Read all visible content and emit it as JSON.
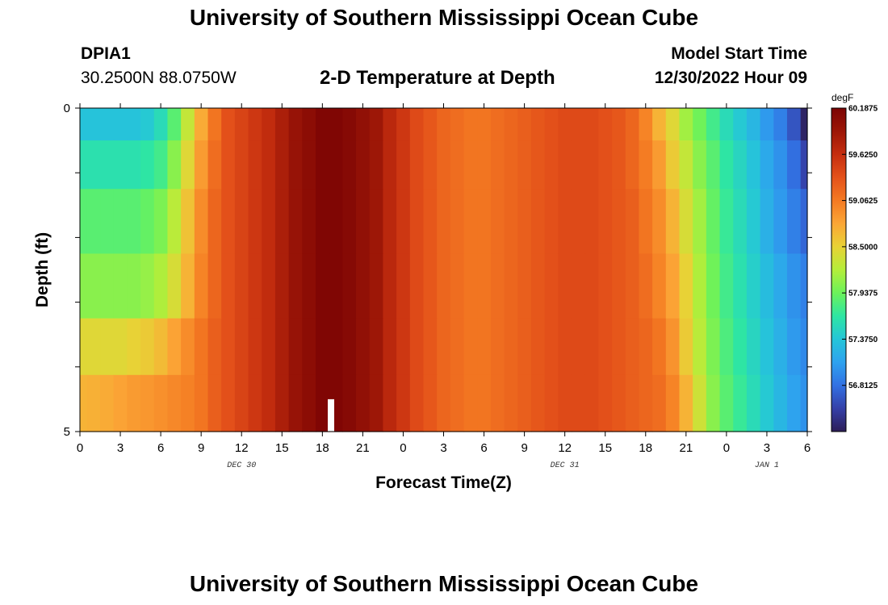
{
  "header": {
    "title": "University of Southern Mississippi Ocean Cube",
    "station_id": "DPIA1",
    "coords": "30.2500N  88.0750W",
    "plot_title": "2-D Temperature at Depth",
    "model_start_label": "Model Start Time",
    "model_start_value": "12/30/2022 Hour 09"
  },
  "footer": {
    "title": "University of Southern Mississippi Ocean Cube"
  },
  "chart_data": {
    "type": "heatmap",
    "title": "2-D Temperature at Depth",
    "xlabel": "Forecast Time(Z)",
    "ylabel": "Depth (ft)",
    "x_tick_labels": [
      "0",
      "3",
      "6",
      "9",
      "12",
      "15",
      "18",
      "21",
      "0",
      "3",
      "6",
      "9",
      "12",
      "15",
      "18",
      "21",
      "0",
      "3",
      "6"
    ],
    "x_day_labels": [
      {
        "label": "DEC 30",
        "at_tick": 4
      },
      {
        "label": "DEC 31",
        "at_tick": 12
      },
      {
        "label": "JAN 1",
        "at_tick": 17
      }
    ],
    "y_tick_labels": [
      {
        "label": "0",
        "value": 0
      },
      {
        "label": "5",
        "value": 5
      }
    ],
    "y_range": [
      0,
      5
    ],
    "x_range_hours": [
      0,
      54
    ],
    "colorbar": {
      "unit": "degF",
      "min": 56.25,
      "max": 60.1875,
      "labels": [
        "60.1875",
        "59.6250",
        "59.0625",
        "58.5000",
        "57.9375",
        "57.3750",
        "56.8125"
      ],
      "label_values": [
        60.1875,
        59.625,
        59.0625,
        58.5,
        57.9375,
        57.375,
        56.8125
      ],
      "palette": [
        "#2d1e57",
        "#3540a8",
        "#3271e3",
        "#2ea2ef",
        "#25c6d8",
        "#2ee6a3",
        "#6cf25a",
        "#b4ee3a",
        "#e8d236",
        "#fba636",
        "#f47a22",
        "#e4511a",
        "#c52e0f",
        "#9c1607",
        "#7c0404"
      ]
    },
    "depth_levels_ft": [
      0.25,
      0.75,
      1.75,
      2.75,
      3.75,
      4.5
    ],
    "time_hours": [
      0,
      1,
      2,
      3,
      4,
      5,
      6,
      7,
      8,
      9,
      10,
      11,
      12,
      13,
      14,
      15,
      16,
      17,
      18,
      19,
      20,
      21,
      22,
      23,
      24,
      25,
      26,
      27,
      28,
      29,
      30,
      31,
      32,
      33,
      34,
      35,
      36,
      37,
      38,
      39,
      40,
      41,
      42,
      43,
      44,
      45,
      46,
      47,
      48,
      49,
      50,
      51,
      52,
      53,
      54
    ],
    "time_series_degF": [
      [
        57.35,
        57.35,
        57.35,
        57.35,
        57.35,
        57.4,
        57.55,
        57.85,
        58.3,
        58.75,
        59.1,
        59.35,
        59.45,
        59.55,
        59.65,
        59.8,
        59.95,
        60.05,
        60.15,
        60.15,
        60.1,
        60.0,
        59.9,
        59.7,
        59.55,
        59.4,
        59.3,
        59.2,
        59.15,
        59.1,
        59.1,
        59.15,
        59.2,
        59.25,
        59.3,
        59.35,
        59.4,
        59.4,
        59.4,
        59.35,
        59.3,
        59.2,
        59.0,
        58.7,
        58.45,
        58.15,
        57.95,
        57.75,
        57.55,
        57.4,
        57.25,
        57.05,
        56.9,
        56.65,
        56.3
      ],
      [
        57.6,
        57.6,
        57.6,
        57.6,
        57.6,
        57.65,
        57.75,
        58.05,
        58.45,
        58.85,
        59.15,
        59.35,
        59.45,
        59.55,
        59.65,
        59.8,
        59.95,
        60.05,
        60.15,
        60.15,
        60.1,
        60.0,
        59.9,
        59.7,
        59.55,
        59.4,
        59.3,
        59.2,
        59.15,
        59.1,
        59.1,
        59.15,
        59.2,
        59.25,
        59.3,
        59.35,
        59.4,
        59.4,
        59.4,
        59.35,
        59.3,
        59.2,
        59.05,
        58.85,
        58.55,
        58.3,
        58.05,
        57.85,
        57.65,
        57.5,
        57.35,
        57.15,
        57.0,
        56.8,
        56.55
      ],
      [
        57.85,
        57.85,
        57.85,
        57.85,
        57.85,
        57.9,
        58.0,
        58.25,
        58.6,
        58.95,
        59.2,
        59.35,
        59.45,
        59.55,
        59.65,
        59.8,
        59.95,
        60.05,
        60.15,
        60.15,
        60.1,
        60.0,
        59.9,
        59.7,
        59.55,
        59.4,
        59.3,
        59.2,
        59.15,
        59.1,
        59.1,
        59.15,
        59.2,
        59.25,
        59.3,
        59.35,
        59.4,
        59.4,
        59.4,
        59.35,
        59.3,
        59.25,
        59.1,
        58.95,
        58.7,
        58.4,
        58.15,
        57.9,
        57.7,
        57.55,
        57.4,
        57.2,
        57.05,
        56.9,
        56.75
      ],
      [
        58.05,
        58.05,
        58.05,
        58.05,
        58.05,
        58.1,
        58.2,
        58.4,
        58.7,
        59.0,
        59.2,
        59.35,
        59.45,
        59.55,
        59.65,
        59.8,
        59.95,
        60.05,
        60.15,
        60.15,
        60.1,
        60.0,
        59.9,
        59.7,
        59.55,
        59.4,
        59.3,
        59.2,
        59.15,
        59.1,
        59.1,
        59.15,
        59.2,
        59.25,
        59.3,
        59.35,
        59.4,
        59.4,
        59.4,
        59.35,
        59.3,
        59.25,
        59.15,
        59.0,
        58.8,
        58.5,
        58.2,
        57.95,
        57.75,
        57.6,
        57.45,
        57.3,
        57.15,
        57.0,
        56.9
      ],
      [
        58.45,
        58.45,
        58.45,
        58.45,
        58.5,
        58.55,
        58.65,
        58.8,
        58.95,
        59.1,
        59.25,
        59.35,
        59.45,
        59.55,
        59.65,
        59.8,
        59.95,
        60.05,
        60.15,
        60.15,
        60.1,
        60.0,
        59.9,
        59.7,
        59.55,
        59.4,
        59.3,
        59.2,
        59.15,
        59.1,
        59.1,
        59.15,
        59.2,
        59.25,
        59.3,
        59.35,
        59.4,
        59.4,
        59.4,
        59.35,
        59.3,
        59.25,
        59.2,
        59.1,
        58.9,
        58.55,
        58.25,
        58.0,
        57.8,
        57.65,
        57.5,
        57.35,
        57.2,
        57.05,
        56.95
      ],
      [
        58.7,
        58.72,
        58.75,
        58.8,
        58.85,
        58.88,
        58.92,
        58.97,
        59.02,
        59.1,
        59.25,
        59.35,
        59.45,
        59.55,
        59.65,
        59.8,
        59.95,
        60.05,
        60.15,
        60.15,
        60.1,
        60.0,
        59.9,
        59.7,
        59.55,
        59.4,
        59.3,
        59.2,
        59.15,
        59.1,
        59.1,
        59.15,
        59.2,
        59.25,
        59.3,
        59.35,
        59.4,
        59.4,
        59.4,
        59.35,
        59.3,
        59.25,
        59.2,
        59.15,
        59.0,
        58.7,
        58.35,
        58.05,
        57.85,
        57.7,
        57.55,
        57.4,
        57.25,
        57.1,
        57.0
      ]
    ]
  }
}
